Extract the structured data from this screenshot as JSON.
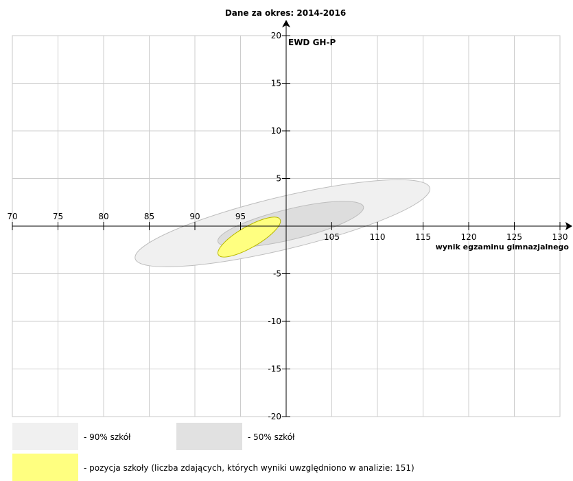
{
  "chart_data": {
    "type": "scatter",
    "title": "Dane za okres: 2014-2016",
    "ylabel": "EWD GH-P",
    "xlabel": "wynik egzaminu gimnazjalnego",
    "xlim": [
      70,
      130
    ],
    "ylim": [
      -20,
      20
    ],
    "x_ticks": [
      70,
      75,
      80,
      85,
      90,
      95,
      100,
      105,
      110,
      115,
      120,
      125,
      130
    ],
    "x_tick_labels": [
      "70",
      "75",
      "80",
      "85",
      "90",
      "95",
      "",
      "105",
      "110",
      "115",
      "120",
      "125",
      "130"
    ],
    "y_ticks": [
      -20,
      -15,
      -10,
      -5,
      0,
      5,
      10,
      15,
      20
    ],
    "y_tick_labels": [
      "-20",
      "-15",
      "-10",
      "-5",
      "",
      "5",
      "10",
      "15",
      "20"
    ],
    "y_axis_at_x": 100,
    "x_axis_at_y": 0,
    "grid": true,
    "ellipses": [
      {
        "series": "90% szkół",
        "color": "#f0f0f0",
        "stroke": "#bdbdbd",
        "cx": 99.6,
        "cy": 0.3,
        "rx": 16.6,
        "ry": 2.75,
        "angle_deg": -13.5
      },
      {
        "series": "50% szkół",
        "color": "#dddddd",
        "stroke": "#bdbdbd",
        "cx": 100.5,
        "cy": 0.2,
        "rx": 8.2,
        "ry": 1.6,
        "angle_deg": -13.5
      },
      {
        "series": "pozycja szkoły",
        "color": "#ffff80",
        "stroke": "#b8b800",
        "cx": 95.95,
        "cy": -1.15,
        "rx": 3.9,
        "ry": 1.1,
        "angle_deg": -30
      }
    ],
    "legend": [
      {
        "label": "- 90% szkół",
        "color": "#f0f0f0"
      },
      {
        "label": "- 50% szkół",
        "color": "#e1e1e1"
      },
      {
        "label": "- pozycja szkoły (liczba zdających, których wyniki uwzględniono w analizie: 151)",
        "color": "#ffff80"
      }
    ]
  }
}
